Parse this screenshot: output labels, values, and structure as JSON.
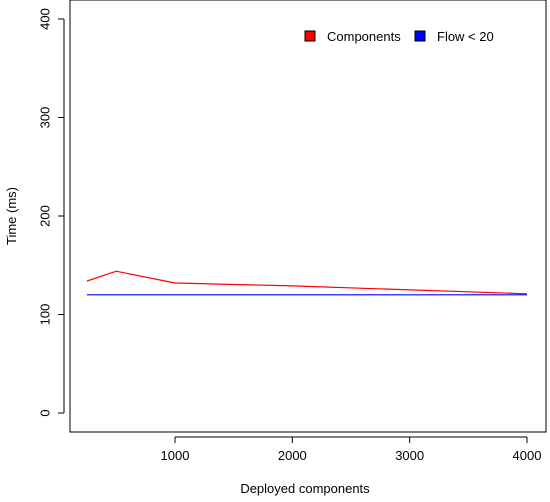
{
  "chart_data": {
    "type": "line",
    "title": "",
    "xlabel": "Deployed components",
    "ylabel": "Time (ms)",
    "xlim": [
      250,
      4000
    ],
    "ylim": [
      0,
      400
    ],
    "xticks": [
      1000,
      2000,
      3000,
      4000
    ],
    "yticks": [
      0,
      100,
      200,
      300,
      400
    ],
    "xtick_labels": [
      "1000",
      "2000",
      "3000",
      "4000"
    ],
    "ytick_labels": [
      "0",
      "100",
      "200",
      "300",
      "400"
    ],
    "grid": false,
    "legend_position": "top-right",
    "series": [
      {
        "name": "Components",
        "color": "#ff0000",
        "x": [
          250,
          500,
          1000,
          2000,
          4000
        ],
        "y": [
          134,
          144,
          132,
          129,
          121
        ]
      },
      {
        "name": "Flow < 20",
        "color": "#0000ff",
        "x": [
          250,
          500,
          1000,
          2000,
          4000
        ],
        "y": [
          120,
          120,
          120,
          120,
          120
        ]
      }
    ]
  }
}
